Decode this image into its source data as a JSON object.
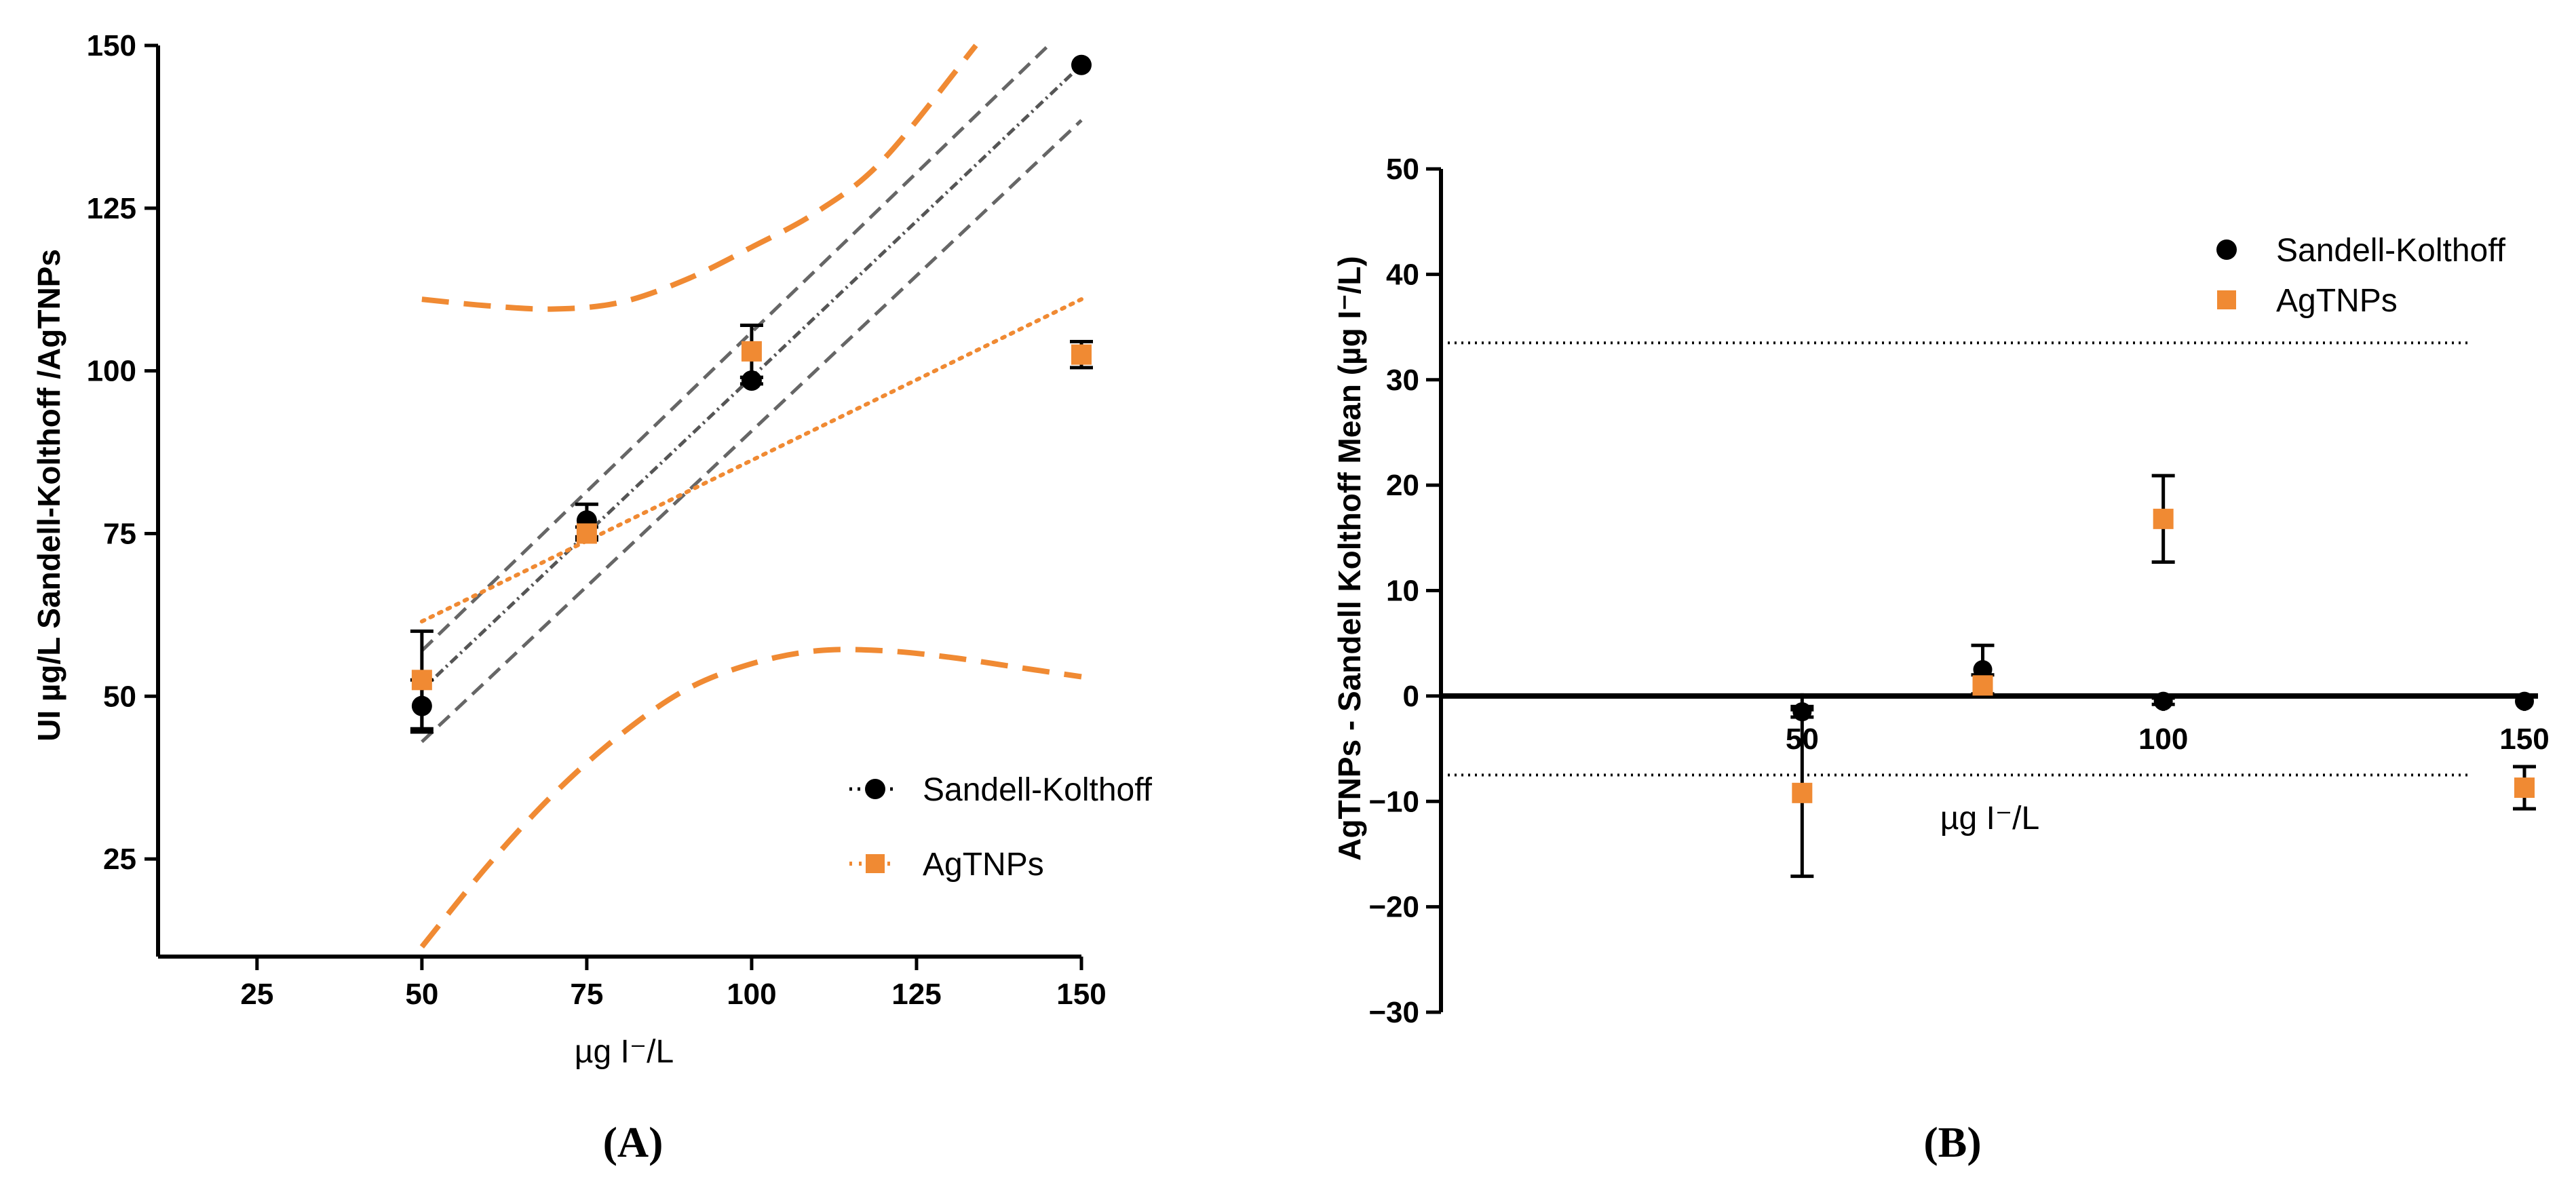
{
  "chart_data": [
    {
      "type": "scatter",
      "panel_label": "(A)",
      "xlabel": "µg I⁻/L",
      "ylabel": "UI µg/L Sandell-Kolthoff /AgTNPs",
      "xlim": [
        10,
        150
      ],
      "ylim": [
        10,
        150
      ],
      "xticks": [
        "25",
        "50",
        "75",
        "100",
        "125",
        "150"
      ],
      "yticks": [
        "25",
        "50",
        "75",
        "100",
        "125",
        "150"
      ],
      "legend_position": "bottom-right",
      "series": [
        {
          "name": "Sandell-Kolthoff",
          "marker": "circle",
          "color": "#000000",
          "x": [
            50,
            75,
            100,
            150
          ],
          "y": [
            48.5,
            77,
            98.5,
            147
          ],
          "err": [
            4,
            2.5,
            0.5,
            0
          ],
          "fit": {
            "from": [
              50,
              51
            ],
            "to": [
              150,
              147
            ]
          },
          "ci_upper": {
            "from": [
              50,
              57
            ],
            "to": [
              145,
              150
            ]
          },
          "ci_lower": {
            "from": [
              50,
              43
            ],
            "to": [
              150,
              138.5
            ]
          }
        },
        {
          "name": "AgTNPs",
          "marker": "square",
          "color": "#F08A33",
          "x": [
            50,
            75,
            100,
            150
          ],
          "y": [
            52.5,
            75,
            103,
            102.5
          ],
          "err": [
            7.5,
            1,
            4,
            2
          ],
          "fit": {
            "from": [
              50,
              61.5
            ],
            "to": [
              150,
              111
            ]
          },
          "ci_upper": [
            [
              50,
              111
            ],
            [
              60,
              110
            ],
            [
              70,
              109.5
            ],
            [
              80,
              110.5
            ],
            [
              90,
              114
            ],
            [
              100,
              119
            ],
            [
              110,
              124.5
            ],
            [
              120,
              132.5
            ],
            [
              134,
              150
            ]
          ],
          "ci_lower": [
            [
              50,
              11.5
            ],
            [
              60,
              24
            ],
            [
              70,
              35
            ],
            [
              80,
              44
            ],
            [
              90,
              51
            ],
            [
              100,
              55
            ],
            [
              110,
              57
            ],
            [
              120,
              57
            ],
            [
              130,
              56
            ],
            [
              140,
              54.5
            ],
            [
              150,
              53
            ]
          ]
        }
      ]
    },
    {
      "type": "scatter",
      "panel_label": "(B)",
      "xlabel": "µg I⁻/L",
      "ylabel": "AgTNPs - Sandell Kolthoff Mean (µg I⁻/L)",
      "xlim": [
        0,
        150
      ],
      "ylim": [
        -30,
        50
      ],
      "xticks": [
        "50",
        "100",
        "150"
      ],
      "yticks": [
        "−30",
        "−20",
        "−10",
        "0",
        "10",
        "20",
        "30",
        "40",
        "50"
      ],
      "reference_lines": [
        33.5,
        -7.5
      ],
      "legend_position": "top-right",
      "series": [
        {
          "name": "Sandell-Kolthoff",
          "marker": "circle",
          "color": "#000000",
          "x": [
            50,
            75,
            100,
            150
          ],
          "y": [
            -1.5,
            2.5,
            -0.5,
            -0.5
          ],
          "err": [
            0.5,
            2.3,
            0.3,
            0
          ]
        },
        {
          "name": "AgTNPs",
          "marker": "square",
          "color": "#F08A33",
          "x": [
            50,
            75,
            100,
            150
          ],
          "y": [
            -9.2,
            1,
            16.8,
            -8.7
          ],
          "err": [
            7.9,
            1,
            4.1,
            2
          ]
        }
      ]
    }
  ]
}
